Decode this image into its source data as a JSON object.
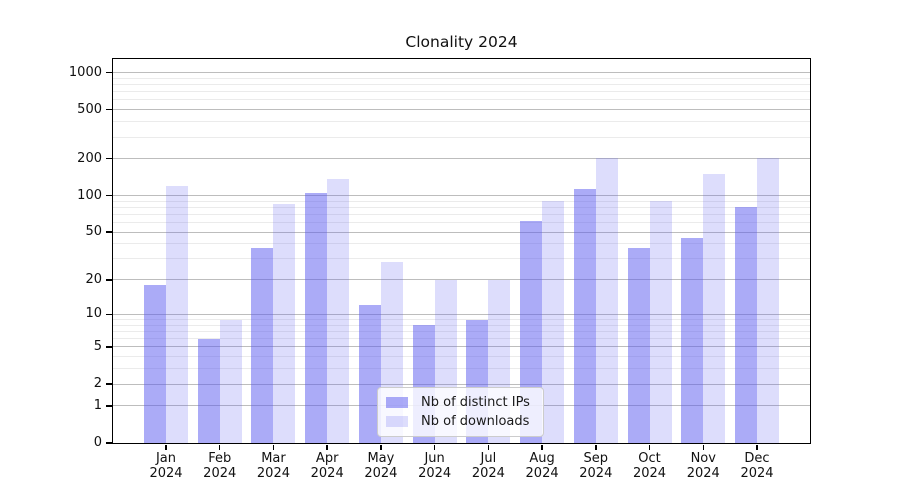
{
  "chart_data": {
    "type": "bar",
    "title": "Clonality 2024",
    "scale": "symlog-log1p",
    "grid": true,
    "categories": [
      "Jan",
      "Feb",
      "Mar",
      "Apr",
      "May",
      "Jun",
      "Jul",
      "Aug",
      "Sep",
      "Oct",
      "Nov",
      "Dec"
    ],
    "year": "2024",
    "series": [
      {
        "name": "Nb of distinct IPs",
        "color": "rgba(87,87,240,0.50)",
        "values": [
          18,
          6,
          37,
          106,
          12,
          8,
          9,
          62,
          113,
          37,
          45,
          81
        ]
      },
      {
        "name": "Nb of downloads",
        "color": "rgba(87,87,240,0.20)",
        "values": [
          120,
          9,
          85,
          137,
          28,
          20,
          20,
          90,
          204,
          90,
          150,
          204
        ]
      }
    ],
    "y_ticks": [
      0,
      1,
      2,
      5,
      10,
      20,
      50,
      100,
      200,
      500,
      1000
    ],
    "y_minor_ticks": [
      3,
      4,
      6,
      7,
      8,
      9,
      30,
      40,
      60,
      70,
      80,
      90,
      300,
      400,
      600,
      700,
      800,
      900
    ],
    "ylim": [
      0,
      1290
    ],
    "xlabel": "",
    "ylabel": "",
    "legend_position": "bottom-center",
    "colors": {
      "bar_base": "#5757f0",
      "grid_major": "#bdbdbd",
      "grid_minor": "#ebebeb",
      "axis": "#000000",
      "background": "#ffffff"
    }
  }
}
